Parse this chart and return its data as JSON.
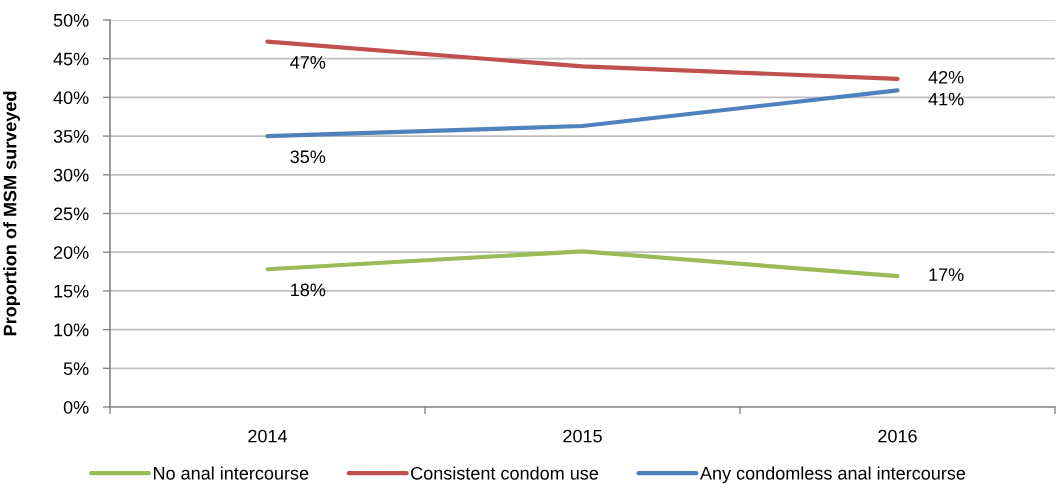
{
  "chart_data": {
    "type": "line",
    "ylabel": "Proportion of MSM surveyed",
    "categories": [
      "2014",
      "2015",
      "2016"
    ],
    "series": [
      {
        "name": "No anal intercourse",
        "color": "#9bbb59",
        "values": [
          17.8,
          20.1,
          16.9
        ],
        "value_labels": [
          "18%",
          null,
          "17%"
        ]
      },
      {
        "name": "Consistent condom use",
        "color": "#c0504d",
        "values": [
          47.2,
          44.0,
          42.4
        ],
        "value_labels": [
          "47%",
          null,
          "42%"
        ]
      },
      {
        "name": "Any condomless anal intercourse",
        "color": "#4f81bd",
        "values": [
          35.0,
          36.3,
          40.9
        ],
        "value_labels": [
          "35%",
          null,
          "41%"
        ]
      }
    ],
    "ylim": [
      0,
      50
    ],
    "yticks": [
      {
        "value": 0,
        "label": "0%"
      },
      {
        "value": 5,
        "label": "5%"
      },
      {
        "value": 10,
        "label": "10%"
      },
      {
        "value": 15,
        "label": "15%"
      },
      {
        "value": 20,
        "label": "20%"
      },
      {
        "value": 25,
        "label": "25%"
      },
      {
        "value": 30,
        "label": "30%"
      },
      {
        "value": 35,
        "label": "35%"
      },
      {
        "value": 40,
        "label": "40%"
      },
      {
        "value": 45,
        "label": "45%"
      },
      {
        "value": 50,
        "label": "50%"
      }
    ],
    "grid": "y",
    "legend": "bottom",
    "marker": "none",
    "line_style": "solid"
  }
}
